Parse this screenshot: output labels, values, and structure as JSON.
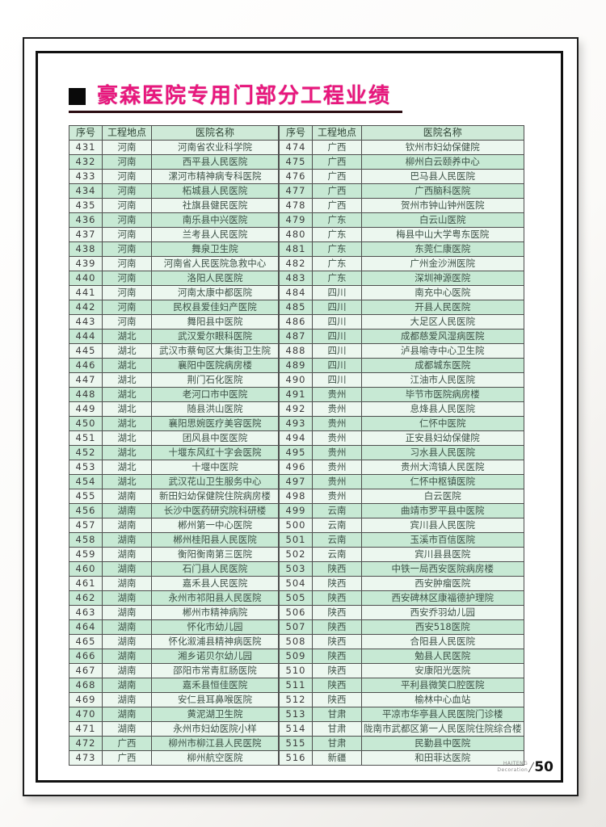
{
  "page": {
    "title": "豪森医院专用门部分工程业绩",
    "footer": {
      "brand_line1": "HAITENG",
      "brand_line2": "Decoration",
      "page_number": "50"
    }
  },
  "colors": {
    "title_pink": "#e8177d",
    "header_green": "#cfead8",
    "row_light": "#ecf7ef",
    "row_mint": "#c7e9d4",
    "border_black": "#111111"
  },
  "table": {
    "headers": [
      "序号",
      "工程地点",
      "医院名称"
    ],
    "left_rows": [
      [
        "431",
        "河南",
        "河南省农业科学院"
      ],
      [
        "432",
        "河南",
        "西平县人民医院"
      ],
      [
        "433",
        "河南",
        "漯河市精神病专科医院"
      ],
      [
        "434",
        "河南",
        "柘城县人民医院"
      ],
      [
        "435",
        "河南",
        "社旗县健民医院"
      ],
      [
        "436",
        "河南",
        "南乐县中兴医院"
      ],
      [
        "437",
        "河南",
        "兰考县人民医院"
      ],
      [
        "438",
        "河南",
        "舞泉卫生院"
      ],
      [
        "439",
        "河南",
        "河南省人民医院急救中心"
      ],
      [
        "440",
        "河南",
        "洛阳人民医院"
      ],
      [
        "441",
        "河南",
        "河南太康中都医院"
      ],
      [
        "442",
        "河南",
        "民权县爱佳妇产医院"
      ],
      [
        "443",
        "河南",
        "舞阳县中医院"
      ],
      [
        "444",
        "湖北",
        "武汉爱尔眼科医院"
      ],
      [
        "445",
        "湖北",
        "武汉市蔡甸区大集街卫生院"
      ],
      [
        "446",
        "湖北",
        "襄阳中医院病房楼"
      ],
      [
        "447",
        "湖北",
        "荆门石化医院"
      ],
      [
        "448",
        "湖北",
        "老河口市中医院"
      ],
      [
        "449",
        "湖北",
        "随县洪山医院"
      ],
      [
        "450",
        "湖北",
        "襄阳思婉医疗美容医院"
      ],
      [
        "451",
        "湖北",
        "团风县中医医院"
      ],
      [
        "452",
        "湖北",
        "十堰东风红十字会医院"
      ],
      [
        "453",
        "湖北",
        "十堰中医院"
      ],
      [
        "454",
        "湖北",
        "武汉花山卫生服务中心"
      ],
      [
        "455",
        "湖南",
        "新田妇幼保健院住院病房楼"
      ],
      [
        "456",
        "湖南",
        "长沙中医药研究院科研楼"
      ],
      [
        "457",
        "湖南",
        "郴州第一中心医院"
      ],
      [
        "458",
        "湖南",
        "郴州桂阳县人民医院"
      ],
      [
        "459",
        "湖南",
        "衡阳衡南第三医院"
      ],
      [
        "460",
        "湖南",
        "石门县人民医院"
      ],
      [
        "461",
        "湖南",
        "嘉禾县人民医院"
      ],
      [
        "462",
        "湖南",
        "永州市祁阳县人民医院"
      ],
      [
        "463",
        "湖南",
        "郴州市精神病院"
      ],
      [
        "464",
        "湖南",
        "怀化市幼儿园"
      ],
      [
        "465",
        "湖南",
        "怀化溆浦县精神病医院"
      ],
      [
        "466",
        "湖南",
        "湘乡诺贝尔幼儿园"
      ],
      [
        "467",
        "湖南",
        "邵阳市常青肛肠医院"
      ],
      [
        "468",
        "湖南",
        "嘉禾县恒佳医院"
      ],
      [
        "469",
        "湖南",
        "安仁县耳鼻喉医院"
      ],
      [
        "470",
        "湖南",
        "黄泥湖卫生院"
      ],
      [
        "471",
        "湖南",
        "永州市妇幼医院小样"
      ],
      [
        "472",
        "广西",
        "柳州市柳江县人民医院"
      ],
      [
        "473",
        "广西",
        "柳州航空医院"
      ]
    ],
    "right_rows": [
      [
        "474",
        "广西",
        "钦州市妇幼保健院"
      ],
      [
        "475",
        "广西",
        "柳州白云颐养中心"
      ],
      [
        "476",
        "广西",
        "巴马县人民医院"
      ],
      [
        "477",
        "广西",
        "广西脑科医院"
      ],
      [
        "478",
        "广西",
        "贺州市钟山钟州医院"
      ],
      [
        "479",
        "广东",
        "白云山医院"
      ],
      [
        "480",
        "广东",
        "梅县中山大学粤东医院"
      ],
      [
        "481",
        "广东",
        "东莞仁康医院"
      ],
      [
        "482",
        "广东",
        "广州金沙洲医院"
      ],
      [
        "483",
        "广东",
        "深圳神源医院"
      ],
      [
        "484",
        "四川",
        "南充中心医院"
      ],
      [
        "485",
        "四川",
        "开县人民医院"
      ],
      [
        "486",
        "四川",
        "大足区人民医院"
      ],
      [
        "487",
        "四川",
        "成都慈爱风湿病医院"
      ],
      [
        "488",
        "四川",
        "泸县喻寺中心卫生院"
      ],
      [
        "489",
        "四川",
        "成都城东医院"
      ],
      [
        "490",
        "四川",
        "江油市人民医院"
      ],
      [
        "491",
        "贵州",
        "毕节市医院病房楼"
      ],
      [
        "492",
        "贵州",
        "息烽县人民医院"
      ],
      [
        "493",
        "贵州",
        "仁怀中医院"
      ],
      [
        "494",
        "贵州",
        "正安县妇幼保健院"
      ],
      [
        "495",
        "贵州",
        "习水县人民医院"
      ],
      [
        "496",
        "贵州",
        "贵州大湾镇人民医院"
      ],
      [
        "497",
        "贵州",
        "仁怀中枢镇医院"
      ],
      [
        "498",
        "贵州",
        "白云医院"
      ],
      [
        "499",
        "云南",
        "曲靖市罗平县中医院"
      ],
      [
        "500",
        "云南",
        "宾川县人民医院"
      ],
      [
        "501",
        "云南",
        "玉溪市百信医院"
      ],
      [
        "502",
        "云南",
        "宾川县县医院"
      ],
      [
        "503",
        "陕西",
        "中铁一局西安医院病房楼"
      ],
      [
        "504",
        "陕西",
        "西安肿瘤医院"
      ],
      [
        "505",
        "陕西",
        "西安碑林区康福德护理院"
      ],
      [
        "506",
        "陕西",
        "西安乔羽幼儿园"
      ],
      [
        "507",
        "陕西",
        "西安518医院"
      ],
      [
        "508",
        "陕西",
        "合阳县人民医院"
      ],
      [
        "509",
        "陕西",
        "勉县人民医院"
      ],
      [
        "510",
        "陕西",
        "安康阳光医院"
      ],
      [
        "511",
        "陕西",
        "平利县微笑口腔医院"
      ],
      [
        "512",
        "陕西",
        "榆林中心血站"
      ],
      [
        "513",
        "甘肃",
        "平凉市华亭县人民医院门诊楼"
      ],
      [
        "514",
        "甘肃",
        "陇南市武都区第一人民医院住院综合楼"
      ],
      [
        "515",
        "甘肃",
        "民勤县中医院"
      ],
      [
        "516",
        "新疆",
        "和田菲达医院"
      ]
    ]
  }
}
